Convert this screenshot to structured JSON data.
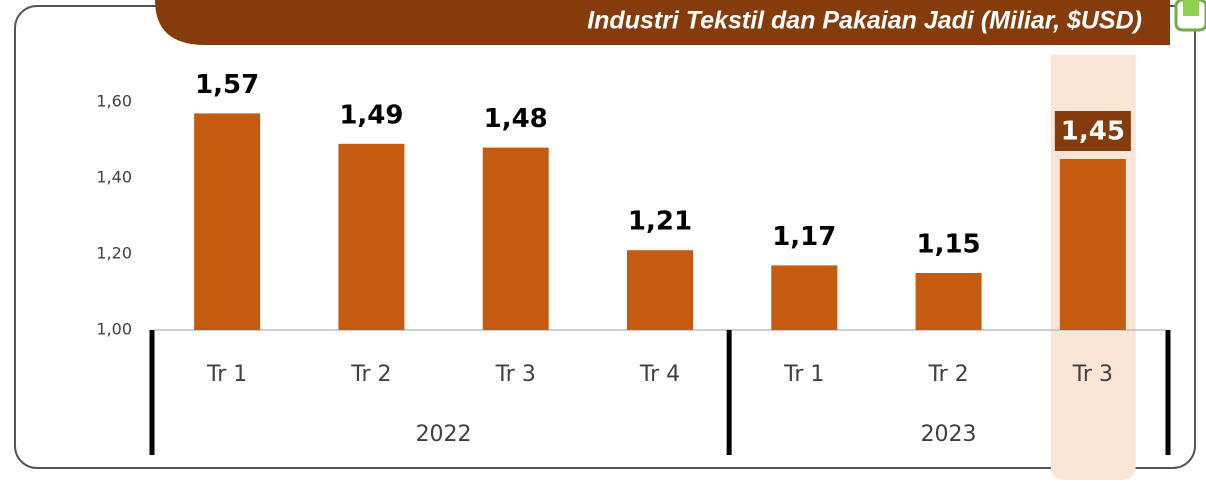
{
  "chart_data": {
    "type": "bar",
    "title": "Industri Tekstil dan Pakaian Jadi (Miliar, $USD)",
    "categories": [
      "Tr 1",
      "Tr 2",
      "Tr 3",
      "Tr 4",
      "Tr 1",
      "Tr 2",
      "Tr 3"
    ],
    "groups": [
      {
        "name": "2022",
        "size": 4
      },
      {
        "name": "2023",
        "size": 3
      }
    ],
    "values": [
      1.57,
      1.49,
      1.48,
      1.21,
      1.17,
      1.15,
      1.45
    ],
    "value_labels": [
      "1,57",
      "1,49",
      "1,48",
      "1,21",
      "1,17",
      "1,15",
      "1,45"
    ],
    "color": "#c55a11",
    "highlight": 6,
    "ylim": [
      1.0,
      1.6
    ],
    "yticks": [
      {
        "value": 1.0,
        "label": "1,00"
      },
      {
        "value": 1.2,
        "label": "1,20"
      },
      {
        "value": 1.4,
        "label": "1,40"
      },
      {
        "value": 1.6,
        "label": "1,60"
      }
    ],
    "grid": false
  }
}
